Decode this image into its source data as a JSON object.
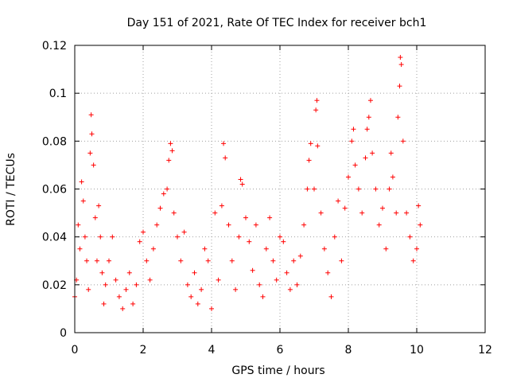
{
  "chart_data": {
    "type": "scatter",
    "title": "Day 151 of 2021, Rate Of TEC Index for receiver bch1",
    "xlabel": "GPS time / hours",
    "ylabel": "ROTI / TECUs",
    "xlim": [
      0,
      12
    ],
    "ylim": [
      0,
      0.12
    ],
    "xticks": [
      0,
      2,
      4,
      6,
      8,
      10,
      12
    ],
    "xtick_labels": [
      "0",
      "2",
      "4",
      "6",
      "8",
      "10",
      "12"
    ],
    "yticks": [
      0,
      0.02,
      0.04,
      0.06,
      0.08,
      0.1,
      0.12
    ],
    "ytick_labels": [
      "0",
      "0.02",
      "0.04",
      "0.06",
      "0.08",
      "0.1",
      "0.12"
    ],
    "grid": true,
    "marker": "plus",
    "series": [
      {
        "name": "ROTI",
        "color": "#ff0000",
        "points": [
          [
            0.0,
            0.015
          ],
          [
            0.05,
            0.022
          ],
          [
            0.1,
            0.045
          ],
          [
            0.15,
            0.035
          ],
          [
            0.2,
            0.063
          ],
          [
            0.25,
            0.055
          ],
          [
            0.3,
            0.04
          ],
          [
            0.35,
            0.03
          ],
          [
            0.4,
            0.018
          ],
          [
            0.45,
            0.075
          ],
          [
            0.48,
            0.091
          ],
          [
            0.5,
            0.083
          ],
          [
            0.55,
            0.07
          ],
          [
            0.6,
            0.048
          ],
          [
            0.65,
            0.03
          ],
          [
            0.7,
            0.053
          ],
          [
            0.75,
            0.04
          ],
          [
            0.8,
            0.025
          ],
          [
            0.85,
            0.012
          ],
          [
            0.9,
            0.02
          ],
          [
            1.0,
            0.03
          ],
          [
            1.1,
            0.04
          ],
          [
            1.2,
            0.022
          ],
          [
            1.3,
            0.015
          ],
          [
            1.4,
            0.01
          ],
          [
            1.5,
            0.018
          ],
          [
            1.6,
            0.025
          ],
          [
            1.7,
            0.012
          ],
          [
            1.8,
            0.02
          ],
          [
            1.9,
            0.038
          ],
          [
            2.0,
            0.042
          ],
          [
            2.1,
            0.03
          ],
          [
            2.2,
            0.022
          ],
          [
            2.3,
            0.035
          ],
          [
            2.4,
            0.045
          ],
          [
            2.5,
            0.052
          ],
          [
            2.6,
            0.058
          ],
          [
            2.7,
            0.06
          ],
          [
            2.75,
            0.072
          ],
          [
            2.8,
            0.079
          ],
          [
            2.85,
            0.076
          ],
          [
            2.9,
            0.05
          ],
          [
            3.0,
            0.04
          ],
          [
            3.1,
            0.03
          ],
          [
            3.2,
            0.042
          ],
          [
            3.3,
            0.02
          ],
          [
            3.4,
            0.015
          ],
          [
            3.5,
            0.025
          ],
          [
            3.6,
            0.012
          ],
          [
            3.7,
            0.018
          ],
          [
            3.8,
            0.035
          ],
          [
            3.9,
            0.03
          ],
          [
            4.0,
            0.01
          ],
          [
            4.1,
            0.05
          ],
          [
            4.2,
            0.022
          ],
          [
            4.3,
            0.053
          ],
          [
            4.35,
            0.079
          ],
          [
            4.4,
            0.073
          ],
          [
            4.5,
            0.045
          ],
          [
            4.6,
            0.03
          ],
          [
            4.7,
            0.018
          ],
          [
            4.8,
            0.04
          ],
          [
            4.85,
            0.064
          ],
          [
            4.9,
            0.062
          ],
          [
            5.0,
            0.048
          ],
          [
            5.1,
            0.038
          ],
          [
            5.2,
            0.026
          ],
          [
            5.3,
            0.045
          ],
          [
            5.4,
            0.02
          ],
          [
            5.5,
            0.015
          ],
          [
            5.6,
            0.035
          ],
          [
            5.7,
            0.048
          ],
          [
            5.8,
            0.03
          ],
          [
            5.9,
            0.022
          ],
          [
            6.0,
            0.04
          ],
          [
            6.1,
            0.038
          ],
          [
            6.2,
            0.025
          ],
          [
            6.3,
            0.018
          ],
          [
            6.4,
            0.03
          ],
          [
            6.5,
            0.02
          ],
          [
            6.6,
            0.032
          ],
          [
            6.7,
            0.045
          ],
          [
            6.8,
            0.06
          ],
          [
            6.85,
            0.072
          ],
          [
            6.9,
            0.079
          ],
          [
            7.0,
            0.06
          ],
          [
            7.05,
            0.093
          ],
          [
            7.08,
            0.097
          ],
          [
            7.1,
            0.078
          ],
          [
            7.2,
            0.05
          ],
          [
            7.3,
            0.035
          ],
          [
            7.4,
            0.025
          ],
          [
            7.5,
            0.015
          ],
          [
            7.6,
            0.04
          ],
          [
            7.7,
            0.055
          ],
          [
            7.8,
            0.03
          ],
          [
            7.9,
            0.052
          ],
          [
            8.0,
            0.065
          ],
          [
            8.1,
            0.08
          ],
          [
            8.15,
            0.085
          ],
          [
            8.2,
            0.07
          ],
          [
            8.3,
            0.06
          ],
          [
            8.4,
            0.05
          ],
          [
            8.5,
            0.073
          ],
          [
            8.55,
            0.085
          ],
          [
            8.6,
            0.09
          ],
          [
            8.65,
            0.097
          ],
          [
            8.7,
            0.075
          ],
          [
            8.8,
            0.06
          ],
          [
            8.9,
            0.045
          ],
          [
            9.0,
            0.052
          ],
          [
            9.1,
            0.035
          ],
          [
            9.2,
            0.06
          ],
          [
            9.25,
            0.075
          ],
          [
            9.3,
            0.065
          ],
          [
            9.4,
            0.05
          ],
          [
            9.45,
            0.09
          ],
          [
            9.5,
            0.103
          ],
          [
            9.52,
            0.115
          ],
          [
            9.55,
            0.112
          ],
          [
            9.6,
            0.08
          ],
          [
            9.7,
            0.05
          ],
          [
            9.8,
            0.04
          ],
          [
            9.9,
            0.03
          ],
          [
            10.0,
            0.035
          ],
          [
            10.05,
            0.053
          ],
          [
            10.1,
            0.045
          ]
        ]
      }
    ]
  }
}
